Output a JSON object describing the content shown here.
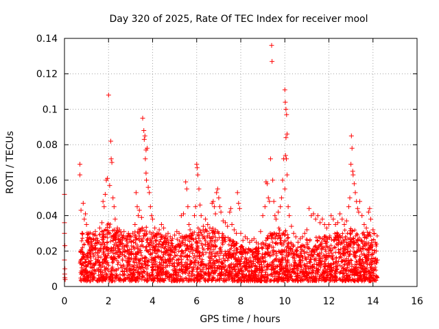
{
  "chart_data": {
    "type": "scatter",
    "title": "Day 320 of 2025, Rate Of TEC Index for receiver mool",
    "xlabel": "GPS time / hours",
    "ylabel": "ROTI / TECUs",
    "xlim": [
      0,
      16
    ],
    "ylim": [
      0,
      0.14
    ],
    "xticks": [
      0,
      2,
      4,
      6,
      8,
      10,
      12,
      14,
      16
    ],
    "xtick_labels": [
      "0",
      "2",
      "4",
      "6",
      "8",
      "10",
      "12",
      "14",
      "16"
    ],
    "yticks": [
      0,
      0.02,
      0.04,
      0.06,
      0.08,
      0.1,
      0.12,
      0.14
    ],
    "ytick_labels": [
      "0",
      "0.02",
      "0.04",
      "0.06",
      "0.08",
      "0.1",
      "0.12",
      "0.14"
    ],
    "grid": true,
    "marker": "+",
    "color": "#ff0000",
    "series": [
      {
        "name": "ROTI",
        "points": [
          [
            0.0,
            0.052
          ],
          [
            0.0,
            0.036
          ],
          [
            0.02,
            0.023
          ],
          [
            0.0,
            0.015
          ],
          [
            0.02,
            0.01
          ],
          [
            0.01,
            0.007
          ],
          [
            0.02,
            0.005
          ],
          [
            0.03,
            0.004
          ],
          [
            0.0,
            0.03
          ],
          [
            0.7,
            0.069
          ],
          [
            0.7,
            0.063
          ],
          [
            0.75,
            0.043
          ],
          [
            0.85,
            0.047
          ],
          [
            0.9,
            0.038
          ],
          [
            0.8,
            0.03
          ],
          [
            0.95,
            0.041
          ],
          [
            1.0,
            0.035
          ],
          [
            1.1,
            0.03
          ],
          [
            1.2,
            0.025
          ],
          [
            1.3,
            0.027
          ],
          [
            1.4,
            0.031
          ],
          [
            1.5,
            0.026
          ],
          [
            1.6,
            0.033
          ],
          [
            1.7,
            0.036
          ],
          [
            1.75,
            0.048
          ],
          [
            1.8,
            0.045
          ],
          [
            1.85,
            0.052
          ],
          [
            1.9,
            0.06
          ],
          [
            1.95,
            0.061
          ],
          [
            2.0,
            0.108
          ],
          [
            2.05,
            0.057
          ],
          [
            2.1,
            0.082
          ],
          [
            2.12,
            0.072
          ],
          [
            2.15,
            0.07
          ],
          [
            2.2,
            0.05
          ],
          [
            2.25,
            0.045
          ],
          [
            2.3,
            0.038
          ],
          [
            2.4,
            0.033
          ],
          [
            2.5,
            0.032
          ],
          [
            2.6,
            0.029
          ],
          [
            2.7,
            0.031
          ],
          [
            2.8,
            0.028
          ],
          [
            2.9,
            0.03
          ],
          [
            3.0,
            0.028
          ],
          [
            3.1,
            0.03
          ],
          [
            3.2,
            0.035
          ],
          [
            3.25,
            0.053
          ],
          [
            3.3,
            0.045
          ],
          [
            3.35,
            0.04
          ],
          [
            3.4,
            0.043
          ],
          [
            3.5,
            0.039
          ],
          [
            3.55,
            0.095
          ],
          [
            3.6,
            0.088
          ],
          [
            3.62,
            0.083
          ],
          [
            3.65,
            0.085
          ],
          [
            3.67,
            0.072
          ],
          [
            3.7,
            0.077
          ],
          [
            3.75,
            0.078
          ],
          [
            3.7,
            0.064
          ],
          [
            3.72,
            0.06
          ],
          [
            3.8,
            0.056
          ],
          [
            3.85,
            0.053
          ],
          [
            3.9,
            0.045
          ],
          [
            3.95,
            0.04
          ],
          [
            4.0,
            0.038
          ],
          [
            4.1,
            0.033
          ],
          [
            4.2,
            0.03
          ],
          [
            4.3,
            0.032
          ],
          [
            4.4,
            0.035
          ],
          [
            4.5,
            0.033
          ],
          [
            4.6,
            0.029
          ],
          [
            4.7,
            0.03
          ],
          [
            4.8,
            0.028
          ],
          [
            4.9,
            0.027
          ],
          [
            5.0,
            0.029
          ],
          [
            5.1,
            0.031
          ],
          [
            5.2,
            0.03
          ],
          [
            5.3,
            0.04
          ],
          [
            5.4,
            0.041
          ],
          [
            5.5,
            0.059
          ],
          [
            5.55,
            0.055
          ],
          [
            5.6,
            0.045
          ],
          [
            5.65,
            0.035
          ],
          [
            5.7,
            0.032
          ],
          [
            5.8,
            0.03
          ],
          [
            5.9,
            0.04
          ],
          [
            5.95,
            0.045
          ],
          [
            6.0,
            0.069
          ],
          [
            6.02,
            0.067
          ],
          [
            6.05,
            0.063
          ],
          [
            6.1,
            0.055
          ],
          [
            6.15,
            0.046
          ],
          [
            6.2,
            0.04
          ],
          [
            6.3,
            0.034
          ],
          [
            6.4,
            0.038
          ],
          [
            6.5,
            0.035
          ],
          [
            6.6,
            0.033
          ],
          [
            6.7,
            0.047
          ],
          [
            6.75,
            0.048
          ],
          [
            6.8,
            0.045
          ],
          [
            6.85,
            0.041
          ],
          [
            6.9,
            0.053
          ],
          [
            6.95,
            0.055
          ],
          [
            7.0,
            0.05
          ],
          [
            7.05,
            0.045
          ],
          [
            7.1,
            0.042
          ],
          [
            7.2,
            0.037
          ],
          [
            7.3,
            0.036
          ],
          [
            7.4,
            0.034
          ],
          [
            7.5,
            0.042
          ],
          [
            7.55,
            0.044
          ],
          [
            7.6,
            0.035
          ],
          [
            7.7,
            0.032
          ],
          [
            7.8,
            0.03
          ],
          [
            7.85,
            0.053
          ],
          [
            7.9,
            0.047
          ],
          [
            7.95,
            0.044
          ],
          [
            8.0,
            0.03
          ],
          [
            8.1,
            0.026
          ],
          [
            8.2,
            0.028
          ],
          [
            8.3,
            0.027
          ],
          [
            8.4,
            0.025
          ],
          [
            8.5,
            0.026
          ],
          [
            8.6,
            0.027
          ],
          [
            8.7,
            0.025
          ],
          [
            8.8,
            0.024
          ],
          [
            8.9,
            0.031
          ],
          [
            9.0,
            0.04
          ],
          [
            9.1,
            0.045
          ],
          [
            9.15,
            0.059
          ],
          [
            9.2,
            0.058
          ],
          [
            9.25,
            0.05
          ],
          [
            9.3,
            0.048
          ],
          [
            9.35,
            0.072
          ],
          [
            9.4,
            0.136
          ],
          [
            9.42,
            0.127
          ],
          [
            9.45,
            0.06
          ],
          [
            9.5,
            0.048
          ],
          [
            9.55,
            0.04
          ],
          [
            9.6,
            0.038
          ],
          [
            9.7,
            0.042
          ],
          [
            9.8,
            0.045
          ],
          [
            9.85,
            0.05
          ],
          [
            9.9,
            0.06
          ],
          [
            9.95,
            0.072
          ],
          [
            10.0,
            0.111
          ],
          [
            10.02,
            0.104
          ],
          [
            10.05,
            0.1
          ],
          [
            10.08,
            0.097
          ],
          [
            10.1,
            0.086
          ],
          [
            10.05,
            0.084
          ],
          [
            10.03,
            0.074
          ],
          [
            10.07,
            0.072
          ],
          [
            10.1,
            0.063
          ],
          [
            10.0,
            0.055
          ],
          [
            10.15,
            0.045
          ],
          [
            10.2,
            0.04
          ],
          [
            10.3,
            0.034
          ],
          [
            10.4,
            0.03
          ],
          [
            10.5,
            0.028
          ],
          [
            10.6,
            0.025
          ],
          [
            10.7,
            0.027
          ],
          [
            10.8,
            0.028
          ],
          [
            10.9,
            0.03
          ],
          [
            11.0,
            0.032
          ],
          [
            11.1,
            0.044
          ],
          [
            11.2,
            0.04
          ],
          [
            11.3,
            0.041
          ],
          [
            11.4,
            0.038
          ],
          [
            11.5,
            0.04
          ],
          [
            11.6,
            0.036
          ],
          [
            11.7,
            0.038
          ],
          [
            11.8,
            0.035
          ],
          [
            11.9,
            0.033
          ],
          [
            12.0,
            0.035
          ],
          [
            12.1,
            0.04
          ],
          [
            12.2,
            0.038
          ],
          [
            12.3,
            0.035
          ],
          [
            12.4,
            0.036
          ],
          [
            12.5,
            0.041
          ],
          [
            12.6,
            0.038
          ],
          [
            12.7,
            0.035
          ],
          [
            12.8,
            0.037
          ],
          [
            12.9,
            0.045
          ],
          [
            12.95,
            0.05
          ],
          [
            13.0,
            0.069
          ],
          [
            13.02,
            0.085
          ],
          [
            13.05,
            0.078
          ],
          [
            13.08,
            0.065
          ],
          [
            13.1,
            0.063
          ],
          [
            13.15,
            0.058
          ],
          [
            13.2,
            0.053
          ],
          [
            13.25,
            0.048
          ],
          [
            13.3,
            0.044
          ],
          [
            13.35,
            0.042
          ],
          [
            13.4,
            0.048
          ],
          [
            13.5,
            0.04
          ],
          [
            13.6,
            0.035
          ],
          [
            13.7,
            0.033
          ],
          [
            13.8,
            0.042
          ],
          [
            13.85,
            0.044
          ],
          [
            13.9,
            0.038
          ],
          [
            14.0,
            0.032
          ],
          [
            14.05,
            0.03
          ],
          [
            14.1,
            0.025
          ],
          [
            14.15,
            0.02
          ],
          [
            14.2,
            0.015
          ]
        ]
      }
    ]
  }
}
